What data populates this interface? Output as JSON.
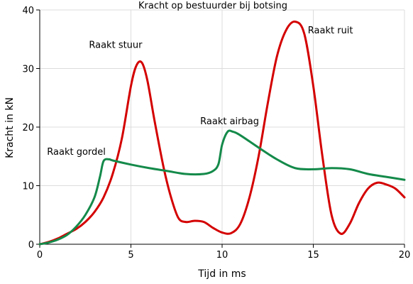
{
  "chart_data": {
    "type": "line",
    "title": "Kracht op bestuurder bij botsing",
    "xlabel": "Tijd in ms",
    "ylabel": "Kracht in kN",
    "xlim": [
      0,
      20
    ],
    "ylim": [
      0,
      40
    ],
    "xticks": [
      0,
      5,
      10,
      15,
      20
    ],
    "yticks": [
      0,
      10,
      20,
      30,
      40
    ],
    "grid": true,
    "series": [
      {
        "color": "#d40000",
        "x": [
          0,
          0.5,
          1,
          1.5,
          2,
          2.5,
          3,
          3.5,
          4,
          4.5,
          5,
          5.3,
          5.6,
          5.9,
          6.3,
          6.8,
          7.2,
          7.6,
          8,
          8.5,
          9,
          9.5,
          10,
          10.5,
          11,
          11.5,
          12,
          12.5,
          13,
          13.5,
          14,
          14.5,
          15,
          15.5,
          16,
          16.5,
          17,
          17.5,
          18,
          18.5,
          19,
          19.5,
          20
        ],
        "y": [
          0,
          0.4,
          1,
          1.8,
          2.6,
          3.8,
          5.5,
          8,
          12,
          18,
          27,
          30.5,
          31,
          28,
          21,
          13,
          8,
          4.5,
          3.8,
          4,
          3.8,
          2.8,
          2,
          1.9,
          3.5,
          8,
          15,
          24,
          32,
          36.5,
          38,
          36,
          27,
          15,
          5,
          1.8,
          3.5,
          7,
          9.5,
          10.5,
          10.2,
          9.5,
          8
        ]
      },
      {
        "color": "#148a4a",
        "x": [
          0,
          0.5,
          1,
          1.5,
          2,
          2.5,
          3,
          3.3,
          3.5,
          3.8,
          4,
          5,
          6,
          7,
          8,
          9,
          9.5,
          9.8,
          10,
          10.3,
          10.6,
          11,
          12,
          13,
          14,
          15,
          16,
          17,
          18,
          19,
          20
        ],
        "y": [
          0,
          0.3,
          0.8,
          1.6,
          3,
          5,
          8,
          11.5,
          14.2,
          14.5,
          14.3,
          13.6,
          13,
          12.5,
          12,
          12,
          12.5,
          13.7,
          17,
          19.2,
          19.2,
          18.6,
          16.5,
          14.5,
          13,
          12.8,
          13,
          12.8,
          12,
          11.5,
          11
        ]
      }
    ],
    "annotations": [
      {
        "text": "Raakt gordel",
        "x": 0.4,
        "y": 15.3
      },
      {
        "text": "Raakt stuur",
        "x": 2.7,
        "y": 33.5
      },
      {
        "text": "Raakt airbag",
        "x": 8.8,
        "y": 20.5
      },
      {
        "text": "Raakt ruit",
        "x": 14.7,
        "y": 36
      }
    ]
  }
}
